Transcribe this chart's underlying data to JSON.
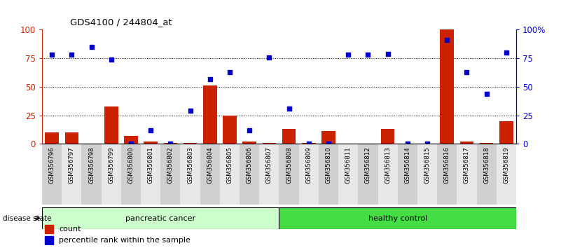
{
  "title": "GDS4100 / 244804_at",
  "samples": [
    "GSM356796",
    "GSM356797",
    "GSM356798",
    "GSM356799",
    "GSM356800",
    "GSM356801",
    "GSM356802",
    "GSM356803",
    "GSM356804",
    "GSM356805",
    "GSM356806",
    "GSM356807",
    "GSM356808",
    "GSM356809",
    "GSM356810",
    "GSM356811",
    "GSM356812",
    "GSM356813",
    "GSM356814",
    "GSM356815",
    "GSM356816",
    "GSM356817",
    "GSM356818",
    "GSM356819"
  ],
  "count": [
    10,
    10,
    0,
    33,
    7,
    2,
    1,
    1,
    51,
    25,
    2,
    1,
    13,
    1,
    11,
    0,
    0,
    13,
    0,
    0,
    100,
    2,
    1,
    20
  ],
  "percentile": [
    78,
    78,
    85,
    74,
    0,
    12,
    0,
    29,
    57,
    63,
    12,
    76,
    31,
    0,
    0,
    78,
    78,
    79,
    0,
    0,
    91,
    63,
    44,
    80
  ],
  "bar_color": "#cc2200",
  "dot_color": "#0000cc",
  "yticks_left": [
    0,
    25,
    50,
    75,
    100
  ],
  "yticks_right": [
    "0",
    "25",
    "50",
    "75",
    "100%"
  ],
  "ylim": [
    0,
    100
  ],
  "bar_width": 0.7,
  "legend_count_label": "count",
  "legend_pct_label": "percentile rank within the sample",
  "disease_state_label": "disease state",
  "group_label_pancreatic": "pancreatic cancer",
  "group_label_healthy": "healthy control",
  "pc_color": "#ccffcc",
  "hc_color": "#44dd44",
  "n_pancreatic": 12,
  "n_total": 24
}
